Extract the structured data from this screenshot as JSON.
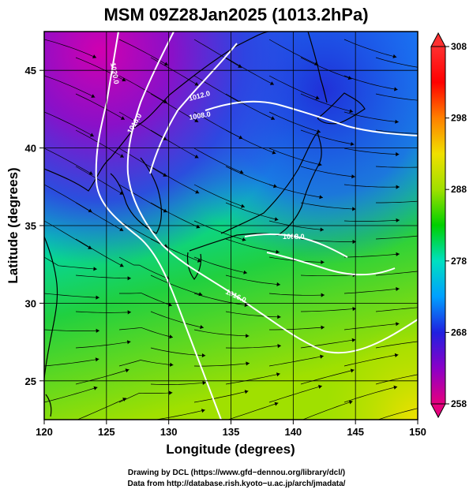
{
  "chart_data": {
    "type": "heatmap",
    "title": "MSM 09Z28Jan2025 (1013.2hPa)",
    "xlabel": "Longitude (degrees)",
    "ylabel": "Latitude  (degrees)",
    "xlim": [
      120,
      150
    ],
    "ylim": [
      22.5,
      47.5
    ],
    "x_ticks": [
      120,
      125,
      130,
      135,
      140,
      145,
      150
    ],
    "y_ticks": [
      25,
      30,
      35,
      40,
      45
    ],
    "colorbar": {
      "min": 258,
      "max": 308,
      "ticks": [
        258,
        268,
        278,
        288,
        298,
        308
      ],
      "colors": [
        "#e6007e",
        "#8b00c8",
        "#2020e0",
        "#00a0ff",
        "#00e0c0",
        "#00d000",
        "#a0e000",
        "#f0e000",
        "#ff8000",
        "#ff0000",
        "#ff3030"
      ]
    },
    "isobars": [
      {
        "label": "1020.0",
        "value": 1020.0
      },
      {
        "label": "1016.0",
        "value": 1016.0
      },
      {
        "label": "1012.0",
        "value": 1012.0
      },
      {
        "label": "1008.0",
        "value": 1008.0
      }
    ],
    "grid": true
  },
  "credits": {
    "line1": "Drawing by DCL (https://www.gfd−dennou.org/library/dcl/)",
    "line2": "Data from http://database.rish.kyoto−u.ac.jp/arch/jmadata/"
  }
}
